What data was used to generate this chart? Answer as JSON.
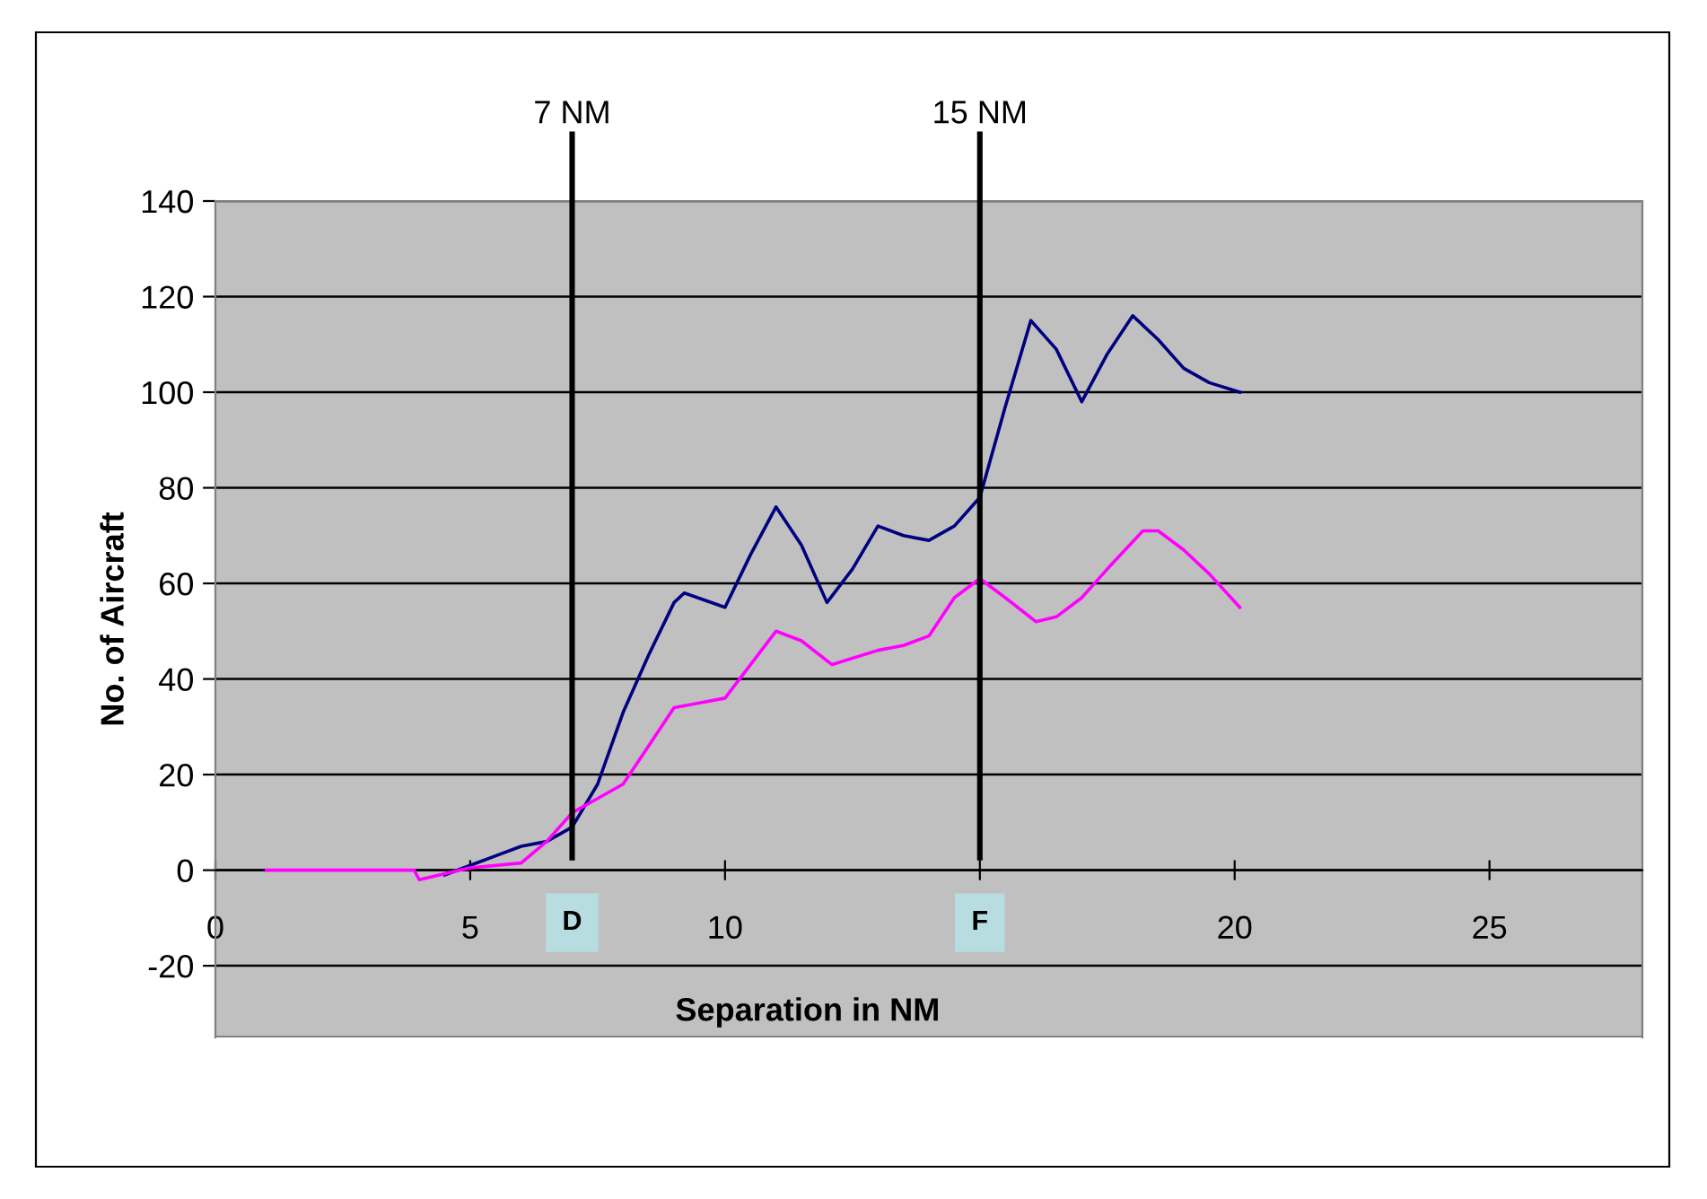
{
  "chart_data": {
    "type": "line",
    "xlabel": "Separation in NM",
    "ylabel": "No. of Aircraft",
    "xlim": [
      0,
      28
    ],
    "xticks": [
      0,
      5,
      10,
      {
        "value": 15,
        "label": null
      },
      20,
      25
    ],
    "ylim": [
      -35,
      140
    ],
    "yticks": [
      -20,
      0,
      20,
      40,
      60,
      80,
      100,
      120,
      140
    ],
    "grid": "y",
    "legend": false,
    "marker": "none",
    "line_style": "solid",
    "series": [
      {
        "color": "#000080",
        "x": [
          4.5,
          5,
          5.5,
          6,
          6.5,
          7,
          7.5,
          8,
          8.5,
          9,
          9.2,
          10,
          10.5,
          11,
          11.5,
          12,
          12.5,
          13,
          13.5,
          14,
          14.5,
          15,
          15.5,
          16,
          16.5,
          17,
          17.5,
          18,
          18.5,
          19,
          19.5,
          20.1
        ],
        "values": [
          -1,
          1,
          3,
          5,
          6,
          9,
          18,
          33,
          45,
          56,
          58,
          55,
          66,
          76,
          68,
          56,
          63,
          72,
          70,
          69,
          72,
          78,
          97,
          115,
          109,
          98,
          108,
          116,
          111,
          105,
          102,
          100
        ]
      },
      {
        "color": "#ff00ff",
        "x": [
          1,
          3.9,
          4,
          5,
          6,
          6.5,
          7,
          7.5,
          8,
          8.5,
          9,
          9.5,
          10,
          10.5,
          11,
          11.5,
          12.1,
          13,
          13.5,
          14,
          14.5,
          15,
          15.5,
          16.1,
          16.5,
          17,
          17.5,
          18.2,
          18.5,
          19,
          19.5,
          20.1
        ],
        "values": [
          0,
          0,
          -2,
          0.5,
          1.5,
          6,
          12,
          15,
          18,
          26,
          34,
          35,
          36,
          43,
          50,
          48,
          43,
          46,
          47,
          49,
          57,
          61,
          57,
          52,
          53,
          57,
          63,
          71,
          71,
          67,
          62,
          55
        ]
      }
    ],
    "ref_lines": [
      {
        "axis": "x",
        "value": 7,
        "label": "7 NM",
        "color": "#000000"
      },
      {
        "axis": "x",
        "value": 15,
        "label": "15 NM",
        "color": "#000000"
      }
    ],
    "annotations": [
      {
        "text": "D",
        "x": 7,
        "y": -11
      },
      {
        "text": "F",
        "x": 15,
        "y": -11
      }
    ]
  }
}
